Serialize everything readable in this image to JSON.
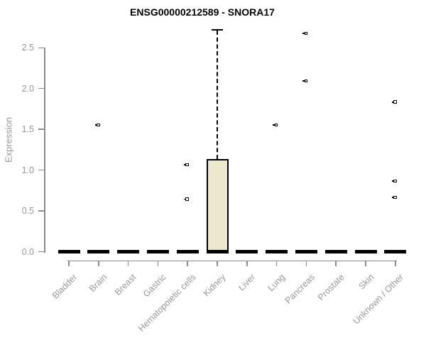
{
  "chart_data": {
    "type": "boxplot",
    "title": "ENSG00000212589 - SNORA17",
    "ylabel": "Expression",
    "xlabel": "",
    "ylim": [
      0,
      2.75
    ],
    "yticks": [
      "0.0",
      "0.5",
      "1.0",
      "1.5",
      "2.0",
      "2.5"
    ],
    "grid": false,
    "legend": false,
    "categories": [
      "Bladder",
      "Brain",
      "Breast",
      "Gastric",
      "Hematopoietic cells",
      "Kidney",
      "Liver",
      "Lung",
      "Pancreas",
      "Prostate",
      "Skin",
      "Unknown / Other"
    ],
    "boxes": [
      {
        "category": "Bladder",
        "whisker_low": 0,
        "q1": 0,
        "median": 0,
        "q3": 0,
        "whisker_high": 0,
        "outliers": []
      },
      {
        "category": "Brain",
        "whisker_low": 0,
        "q1": 0,
        "median": 0,
        "q3": 0,
        "whisker_high": 0,
        "outliers": [
          1.55
        ]
      },
      {
        "category": "Breast",
        "whisker_low": 0,
        "q1": 0,
        "median": 0,
        "q3": 0,
        "whisker_high": 0,
        "outliers": []
      },
      {
        "category": "Gastric",
        "whisker_low": 0,
        "q1": 0,
        "median": 0,
        "q3": 0,
        "whisker_high": 0,
        "outliers": []
      },
      {
        "category": "Hematopoietic cells",
        "whisker_low": 0,
        "q1": 0,
        "median": 0,
        "q3": 0,
        "whisker_high": 0,
        "outliers": [
          1.06,
          0.64
        ]
      },
      {
        "category": "Kidney",
        "whisker_low": 0,
        "q1": 0,
        "median": 0,
        "q3": 1.14,
        "whisker_high": 2.72,
        "outliers": []
      },
      {
        "category": "Liver",
        "whisker_low": 0,
        "q1": 0,
        "median": 0,
        "q3": 0,
        "whisker_high": 0,
        "outliers": []
      },
      {
        "category": "Lung",
        "whisker_low": 0,
        "q1": 0,
        "median": 0,
        "q3": 0,
        "whisker_high": 0,
        "outliers": [
          1.55
        ]
      },
      {
        "category": "Pancreas",
        "whisker_low": 0,
        "q1": 0,
        "median": 0,
        "q3": 0,
        "whisker_high": 0,
        "outliers": [
          2.67,
          2.09
        ]
      },
      {
        "category": "Prostate",
        "whisker_low": 0,
        "q1": 0,
        "median": 0,
        "q3": 0,
        "whisker_high": 0,
        "outliers": []
      },
      {
        "category": "Skin",
        "whisker_low": 0,
        "q1": 0,
        "median": 0,
        "q3": 0,
        "whisker_high": 0,
        "outliers": []
      },
      {
        "category": "Unknown / Other",
        "whisker_low": 0,
        "q1": 0,
        "median": 0,
        "q3": 0,
        "whisker_high": 0,
        "outliers": [
          1.83,
          0.86,
          0.66
        ]
      }
    ],
    "colors": {
      "box_fill": "#ede8cd",
      "box_border": "#000000",
      "median": "#000000",
      "axis_line": "#8c8c8c",
      "axis_text": "#999999",
      "title_text": "#000000",
      "background": "#ffffff"
    }
  }
}
